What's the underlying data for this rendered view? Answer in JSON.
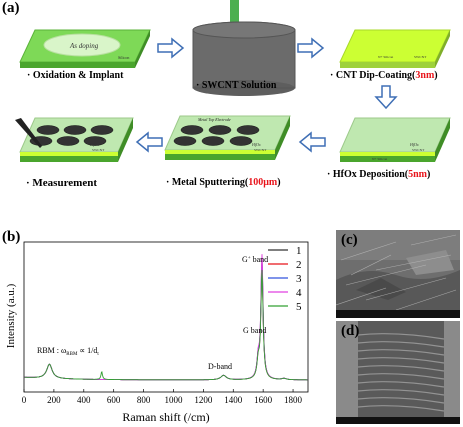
{
  "panel_a": {
    "label": "(a)",
    "steps": [
      {
        "bullet": "·",
        "text": "Oxidation & Implant",
        "highlight": ""
      },
      {
        "bullet": "·",
        "text": "SWCNT Solution",
        "highlight": ""
      },
      {
        "bullet": "·",
        "text": "CNT Dip-Coating(",
        "highlight": "3nm",
        "suffix": ")"
      },
      {
        "bullet": "·",
        "text": "HfOx Deposition(",
        "highlight": "5nm",
        "suffix": ")"
      },
      {
        "bullet": "·",
        "text": "Metal Sputtering(",
        "highlight": "100μm",
        "suffix": ")"
      },
      {
        "bullet": "·",
        "text": "Measurement",
        "highlight": ""
      }
    ],
    "tile_labels": {
      "as_doping": "As doping",
      "silicon": "Silicon",
      "n_silicon": "N+ Silicon",
      "swcnt": "SWCNT",
      "hfox": "HfOx",
      "metal_top_electrode": "Metal Top Electrode"
    },
    "colors": {
      "tile_green": "#7ed957",
      "tile_lime": "#ccff33",
      "arrow": "#3f6fb5",
      "beaker": "#6b6b6b",
      "film": "#1fa045",
      "electrode": "#333333"
    }
  },
  "panel_b": {
    "label": "(b)",
    "chart_data": {
      "type": "line",
      "xlabel": "Raman shift (/cm)",
      "ylabel": "Intensity (a.u.)",
      "xlim": [
        0,
        1900
      ],
      "xticks": [
        0,
        200,
        400,
        600,
        800,
        1000,
        1200,
        1400,
        1600,
        1800
      ],
      "series": [
        {
          "name": "1",
          "color": "#333333"
        },
        {
          "name": "2",
          "color": "#e8141b"
        },
        {
          "name": "3",
          "color": "#3355dd"
        },
        {
          "name": "4",
          "color": "#e040e0"
        },
        {
          "name": "5",
          "color": "#33a033"
        }
      ],
      "annotations": [
        {
          "text": "RBM : ωRBM ∝ 1/dt",
          "x": 170
        },
        {
          "text": "D-band",
          "x": 1335
        },
        {
          "text": "G band",
          "x": 1570
        },
        {
          "text": "G+ band",
          "x": 1590
        }
      ]
    }
  },
  "panel_c": {
    "label": "(c)"
  },
  "panel_d": {
    "label": "(d)"
  }
}
